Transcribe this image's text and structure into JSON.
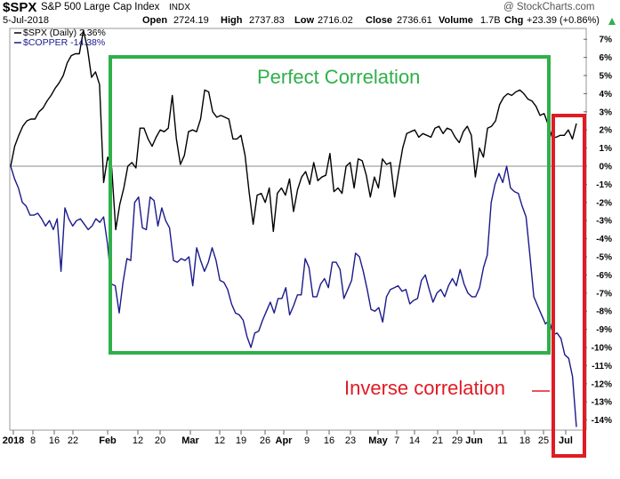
{
  "header": {
    "symbol": "$SPX",
    "name": "S&P 500 Large Cap Index",
    "exchange": "INDX",
    "watermark": "@ StockCharts.com",
    "date": "5-Jul-2018",
    "open_label": "Open",
    "open": "2724.19",
    "high_label": "High",
    "high": "2737.83",
    "low_label": "Low",
    "low": "2716.02",
    "close_label": "Close",
    "close": "2736.61",
    "volume_label": "Volume",
    "volume": "1.7B",
    "chg_label": "Chg",
    "chg": "+23.39 (+0.86%)",
    "chg_icon": "triangle-up-icon"
  },
  "legend": {
    "spx": "$SPX (Daily) 2.36%",
    "copper": "$COPPER -14.38%"
  },
  "annotations": {
    "perfect": "Perfect Correlation",
    "inverse": "Inverse correlation"
  },
  "colors": {
    "spx": "#000000",
    "copper": "#1a1a8c",
    "green_box": "#2fb04a",
    "red_box": "#e01b24",
    "zero_line": "#888888"
  },
  "chart_data": {
    "type": "line",
    "ylim": [
      -15,
      7.5
    ],
    "y_unit": "%",
    "y_ticks": [
      "7%",
      "6%",
      "5%",
      "4%",
      "3%",
      "2%",
      "1%",
      "0%",
      "-1%",
      "-2%",
      "-3%",
      "-4%",
      "-5%",
      "-6%",
      "-7%",
      "-8%",
      "-9%",
      "-10%",
      "-11%",
      "-12%",
      "-13%",
      "-14%"
    ],
    "x_labels": [
      "2018",
      "8",
      "16",
      "22",
      "Feb",
      "12",
      "20",
      "Mar",
      "12",
      "19",
      "26",
      "Apr",
      "9",
      "16",
      "23",
      "May",
      "7",
      "14",
      "21",
      "29",
      "Jun",
      "11",
      "18",
      "25",
      "Jul"
    ],
    "bold_x_labels": [
      "2018",
      "Feb",
      "Mar",
      "Apr",
      "May",
      "Jun",
      "Jul"
    ],
    "series": [
      {
        "name": "$SPX (Daily) 2.36%",
        "values": [
          0,
          1.1,
          1.7,
          2.2,
          2.5,
          2.6,
          2.6,
          3.0,
          3.2,
          3.6,
          3.9,
          4.3,
          4.6,
          5.0,
          5.7,
          6.1,
          6.2,
          6.2,
          7.5,
          6.5,
          4.9,
          5.2,
          4.5,
          -0.9,
          0.5,
          -0.1,
          -3.5,
          -2.1,
          -1.2,
          0,
          0.2,
          -0.1,
          2.1,
          2.1,
          1.5,
          1.1,
          1.6,
          2.0,
          1.9,
          2.1,
          3.9,
          1.5,
          0.1,
          0.6,
          1.9,
          2.0,
          1.9,
          2.6,
          4.2,
          4.1,
          3.0,
          2.7,
          2.8,
          2.7,
          2.6,
          1.5,
          1.5,
          1.7,
          0.6,
          -1.4,
          -3.2,
          -1.6,
          -1.5,
          -2.0,
          -1.2,
          -3.6,
          -1.5,
          -1.2,
          -1.6,
          -0.7,
          -2.5,
          -1.3,
          -0.6,
          -0.3,
          -1.0,
          0.2,
          -0.8,
          -0.6,
          -0.5,
          0.7,
          -1.4,
          -1.2,
          -1.5,
          0,
          0.2,
          -1.2,
          0.4,
          0.3,
          -0.5,
          -1.7,
          -0.6,
          -1.2,
          0.4,
          0.1,
          0.2,
          -1.7,
          -0.3,
          1.0,
          1.8,
          1.9,
          2.0,
          1.6,
          1.8,
          1.7,
          1.6,
          2.1,
          2.2,
          1.8,
          2.1,
          2.0,
          1.6,
          1.3,
          1.9,
          2.2,
          1.7,
          -0.6,
          1.0,
          0.5,
          2.1,
          2.2,
          2.5,
          3.4,
          3.8,
          4.0,
          3.9,
          4.1,
          4.2,
          4.0,
          3.7,
          3.6,
          3.3,
          2.8,
          2.9,
          2.3,
          1.6,
          1.6,
          1.7,
          1.7,
          2.0,
          1.5,
          2.36
        ]
      },
      {
        "name": "$COPPER -14.38%",
        "values": [
          0,
          -0.7,
          -1.2,
          -2.0,
          -2.2,
          -2.7,
          -2.7,
          -2.6,
          -2.9,
          -3.3,
          -3.0,
          -3.5,
          -2.9,
          -5.8,
          -2.3,
          -2.9,
          -3.3,
          -3.0,
          -2.9,
          -3.2,
          -3.5,
          -3.3,
          -2.9,
          -3.1,
          -2.8,
          -4.3,
          -6.5,
          -6.6,
          -8.1,
          -6.4,
          -5.1,
          -5.2,
          -2.0,
          -1.7,
          -3.4,
          -3.5,
          -1.7,
          -1.9,
          -3.3,
          -2.3,
          -3.0,
          -3.4,
          -5.2,
          -5.3,
          -5.1,
          -5.2,
          -5.0,
          -6.6,
          -4.5,
          -5.2,
          -5.8,
          -5.3,
          -4.5,
          -5.2,
          -6.3,
          -6.4,
          -6.8,
          -7.6,
          -8.1,
          -8.2,
          -8.5,
          -9.4,
          -10.0,
          -9.2,
          -9.1,
          -8.5,
          -8.0,
          -7.5,
          -8.1,
          -7.3,
          -7.3,
          -6.7,
          -8.2,
          -7.7,
          -7.1,
          -7.1,
          -5.1,
          -5.6,
          -7.2,
          -7.2,
          -6.5,
          -6.2,
          -6.7,
          -5.3,
          -5.3,
          -5.7,
          -7.3,
          -6.8,
          -6.3,
          -4.8,
          -5.0,
          -5.8,
          -6.8,
          -7.9,
          -8.0,
          -7.8,
          -8.6,
          -7.2,
          -6.8,
          -6.7,
          -6.6,
          -6.9,
          -6.8,
          -7.6,
          -7.4,
          -7.3,
          -6.3,
          -6.0,
          -6.8,
          -7.5,
          -7.0,
          -6.8,
          -7.2,
          -6.6,
          -6.2,
          -6.6,
          -5.7,
          -6.5,
          -7.0,
          -7.2,
          -7.2,
          -6.7,
          -5.6,
          -4.9,
          -2.0,
          -1.0,
          -0.4,
          -0.9,
          0,
          -1.2,
          -1.4,
          -1.5,
          -2.2,
          -2.8,
          -4.9,
          -7.2,
          -7.7,
          -8.2,
          -8.7,
          -8.5,
          -9.3,
          -9.2,
          -9.5,
          -10.4,
          -10.6,
          -11.6,
          -14.38
        ]
      }
    ],
    "regions": [
      {
        "label": "Perfect Correlation",
        "color": "green"
      },
      {
        "label": "Inverse correlation",
        "color": "red"
      }
    ]
  }
}
